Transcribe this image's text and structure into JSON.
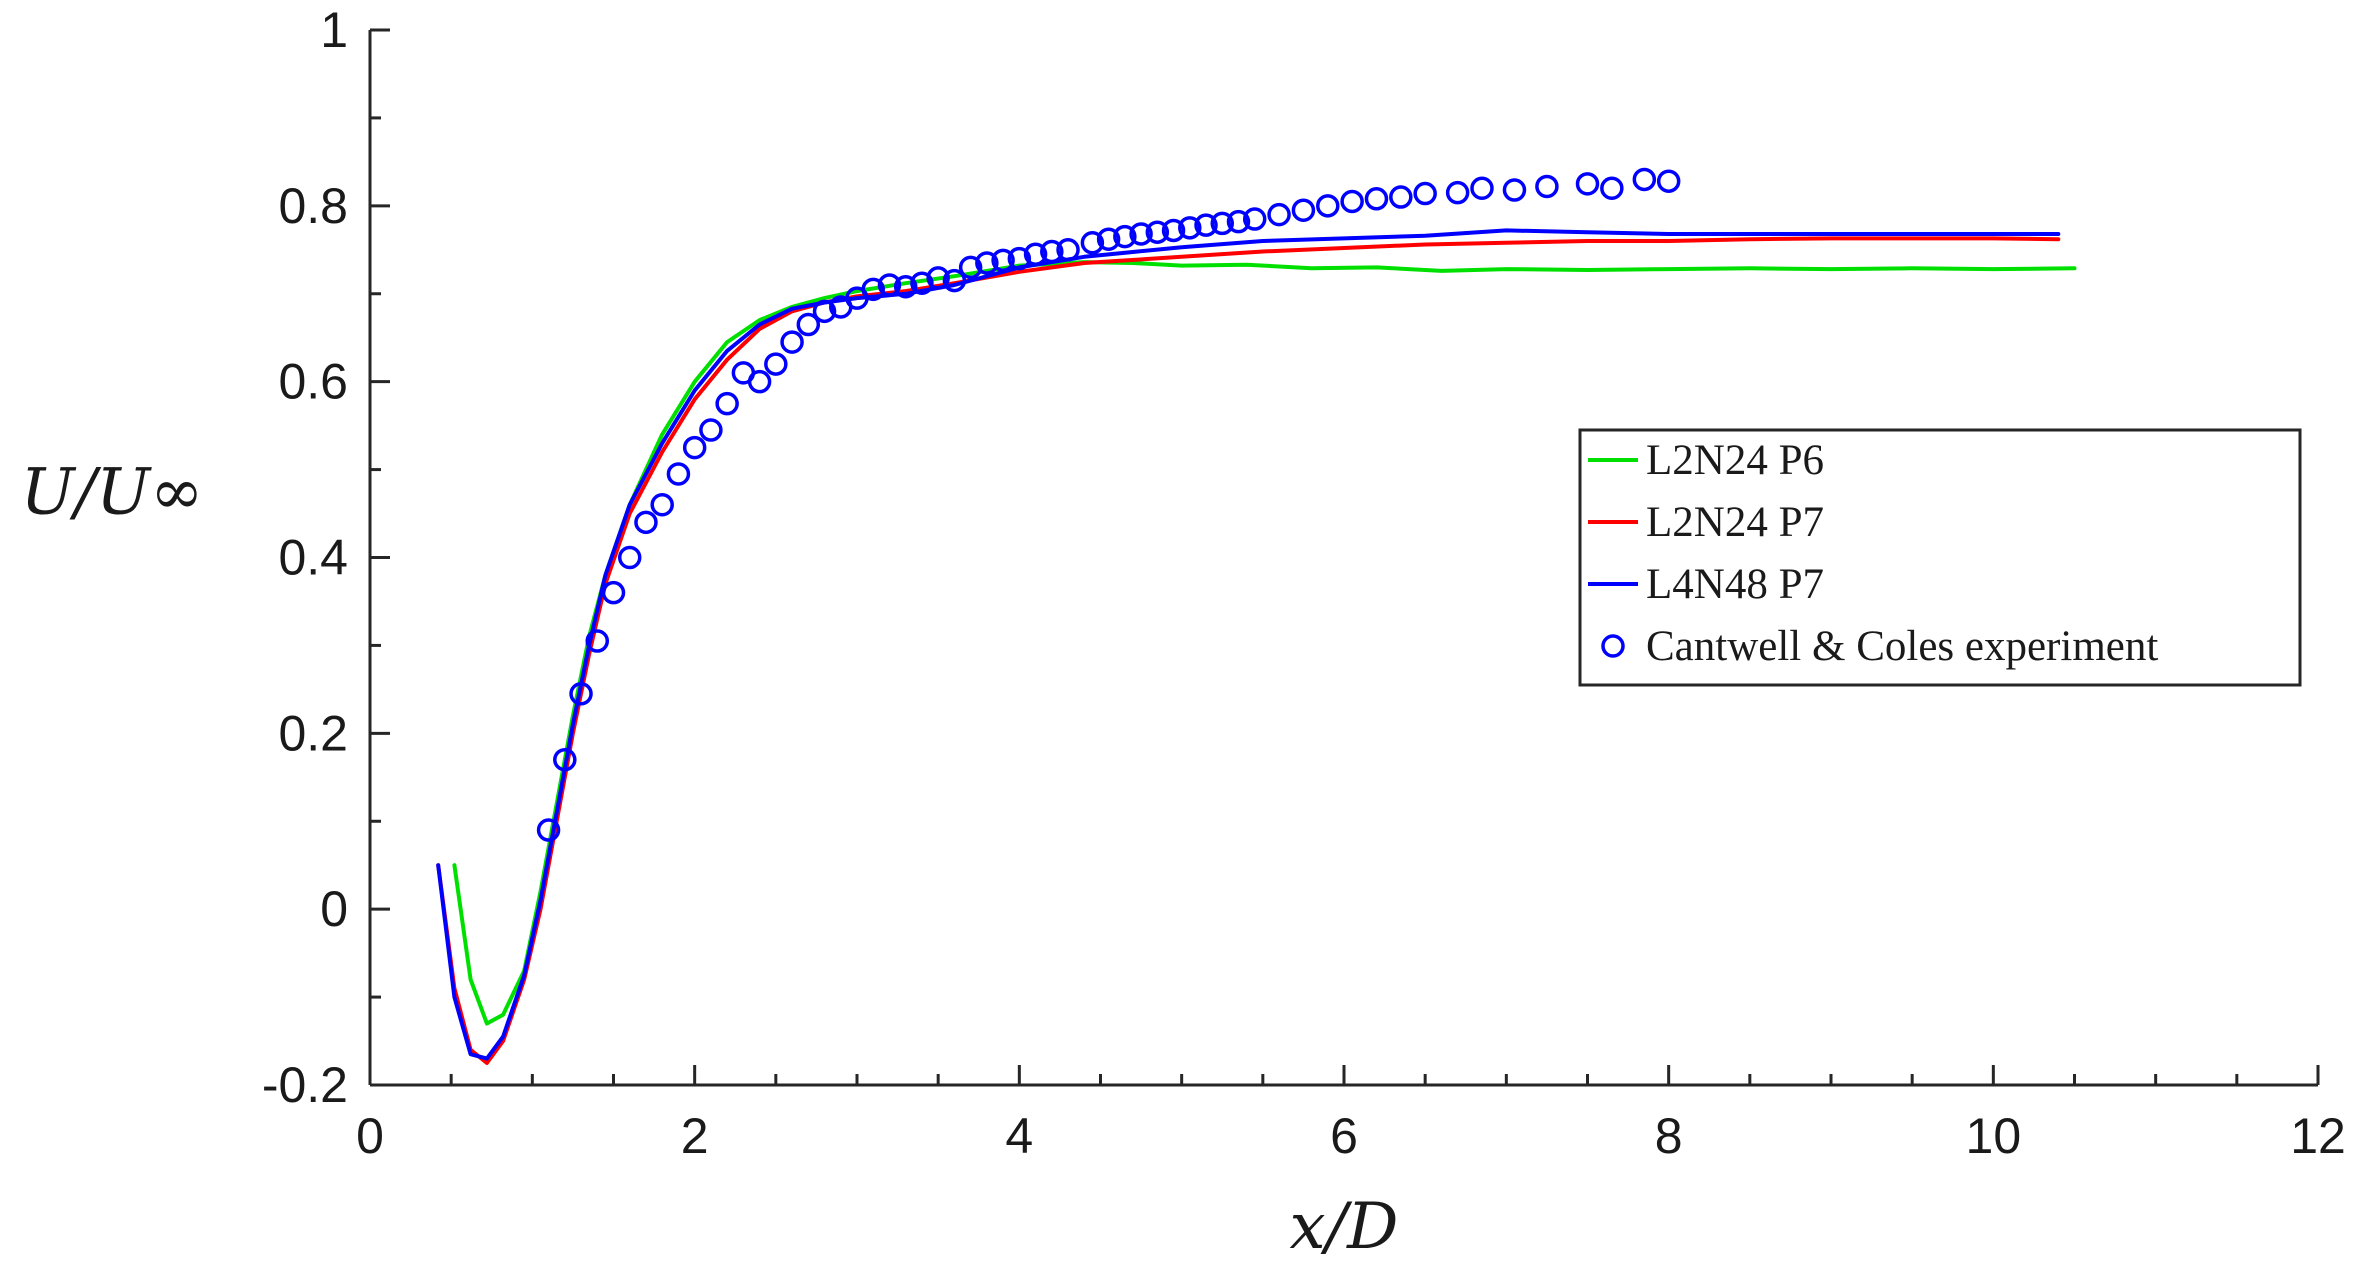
{
  "chart_data": {
    "type": "line",
    "title": "",
    "xlabel": "x/D",
    "ylabel": "U/U∞",
    "xlim": [
      0,
      12
    ],
    "ylim": [
      -0.2,
      1
    ],
    "xticks": [
      0,
      2,
      4,
      6,
      8,
      10,
      12
    ],
    "xtick_labels": [
      "0",
      "2",
      "4",
      "6",
      "8",
      "10",
      "12"
    ],
    "yticks": [
      -0.2,
      0,
      0.2,
      0.4,
      0.6,
      0.8,
      1
    ],
    "ytick_labels": [
      "-0.2",
      "0",
      "0.2",
      "0.4",
      "0.6",
      "0.8",
      "1"
    ],
    "grid": false,
    "legend_position": "right",
    "series": [
      {
        "name": "L2N24 P6",
        "style": "line",
        "color": "#00e000",
        "x": [
          0.52,
          0.62,
          0.72,
          0.82,
          0.95,
          1.05,
          1.15,
          1.25,
          1.35,
          1.45,
          1.6,
          1.8,
          2.0,
          2.2,
          2.4,
          2.6,
          2.8,
          3.0,
          3.3,
          3.6,
          4.0,
          4.4,
          4.7,
          5.0,
          5.4,
          5.8,
          6.2,
          6.6,
          7.0,
          7.5,
          8.0,
          8.5,
          9.0,
          9.5,
          10.0,
          10.5
        ],
        "y": [
          0.05,
          -0.08,
          -0.13,
          -0.12,
          -0.07,
          0.02,
          0.12,
          0.22,
          0.31,
          0.38,
          0.46,
          0.54,
          0.6,
          0.645,
          0.67,
          0.685,
          0.695,
          0.703,
          0.712,
          0.72,
          0.732,
          0.736,
          0.735,
          0.732,
          0.733,
          0.729,
          0.73,
          0.726,
          0.728,
          0.727,
          0.728,
          0.729,
          0.728,
          0.729,
          0.728,
          0.729
        ]
      },
      {
        "name": "L2N24 P7",
        "style": "line",
        "color": "#ff0000",
        "x": [
          0.42,
          0.52,
          0.62,
          0.72,
          0.82,
          0.95,
          1.05,
          1.15,
          1.25,
          1.35,
          1.45,
          1.6,
          1.8,
          2.0,
          2.2,
          2.4,
          2.6,
          2.8,
          3.0,
          3.3,
          3.6,
          4.0,
          4.4,
          5.0,
          5.5,
          6.0,
          6.5,
          7.0,
          7.5,
          8.0,
          8.5,
          9.0,
          9.5,
          10.0,
          10.4
        ],
        "y": [
          0.05,
          -0.09,
          -0.16,
          -0.175,
          -0.15,
          -0.08,
          0.0,
          0.1,
          0.2,
          0.29,
          0.37,
          0.45,
          0.52,
          0.58,
          0.625,
          0.66,
          0.68,
          0.69,
          0.697,
          0.703,
          0.712,
          0.725,
          0.735,
          0.742,
          0.748,
          0.752,
          0.756,
          0.758,
          0.76,
          0.76,
          0.762,
          0.763,
          0.763,
          0.763,
          0.762
        ]
      },
      {
        "name": "L4N48 P7",
        "style": "line",
        "color": "#0000ff",
        "x": [
          0.42,
          0.52,
          0.62,
          0.72,
          0.82,
          0.95,
          1.05,
          1.15,
          1.25,
          1.35,
          1.45,
          1.6,
          1.8,
          2.0,
          2.2,
          2.4,
          2.6,
          2.8,
          3.0,
          3.3,
          3.6,
          4.0,
          4.4,
          5.0,
          5.5,
          6.0,
          6.5,
          7.0,
          7.5,
          8.0,
          8.5,
          9.0,
          9.5,
          10.0,
          10.4
        ],
        "y": [
          0.05,
          -0.1,
          -0.165,
          -0.17,
          -0.145,
          -0.075,
          0.01,
          0.11,
          0.21,
          0.3,
          0.38,
          0.46,
          0.53,
          0.59,
          0.635,
          0.665,
          0.683,
          0.69,
          0.695,
          0.7,
          0.71,
          0.73,
          0.742,
          0.753,
          0.76,
          0.763,
          0.766,
          0.772,
          0.77,
          0.768,
          0.768,
          0.768,
          0.768,
          0.768,
          0.768
        ]
      },
      {
        "name": "Cantwell & Coles experiment",
        "style": "marker",
        "color": "#0000ff",
        "x": [
          1.1,
          1.2,
          1.3,
          1.4,
          1.5,
          1.6,
          1.7,
          1.8,
          1.9,
          2.0,
          2.1,
          2.2,
          2.3,
          2.4,
          2.5,
          2.6,
          2.7,
          2.8,
          2.9,
          3.0,
          3.1,
          3.2,
          3.3,
          3.4,
          3.5,
          3.6,
          3.7,
          3.8,
          3.9,
          4.0,
          4.1,
          4.2,
          4.3,
          4.45,
          4.55,
          4.65,
          4.75,
          4.85,
          4.95,
          5.05,
          5.15,
          5.25,
          5.35,
          5.45,
          5.6,
          5.75,
          5.9,
          6.05,
          6.2,
          6.35,
          6.5,
          6.7,
          6.85,
          7.05,
          7.25,
          7.5,
          7.65,
          7.85,
          8.0
        ],
        "y": [
          0.09,
          0.17,
          0.245,
          0.305,
          0.36,
          0.4,
          0.44,
          0.46,
          0.495,
          0.525,
          0.545,
          0.575,
          0.61,
          0.6,
          0.62,
          0.645,
          0.665,
          0.68,
          0.685,
          0.695,
          0.705,
          0.71,
          0.708,
          0.712,
          0.718,
          0.715,
          0.73,
          0.735,
          0.738,
          0.74,
          0.745,
          0.748,
          0.75,
          0.758,
          0.762,
          0.765,
          0.768,
          0.77,
          0.772,
          0.775,
          0.778,
          0.78,
          0.782,
          0.785,
          0.79,
          0.795,
          0.8,
          0.805,
          0.808,
          0.81,
          0.814,
          0.815,
          0.82,
          0.818,
          0.822,
          0.825,
          0.82,
          0.83,
          0.828
        ]
      }
    ]
  }
}
